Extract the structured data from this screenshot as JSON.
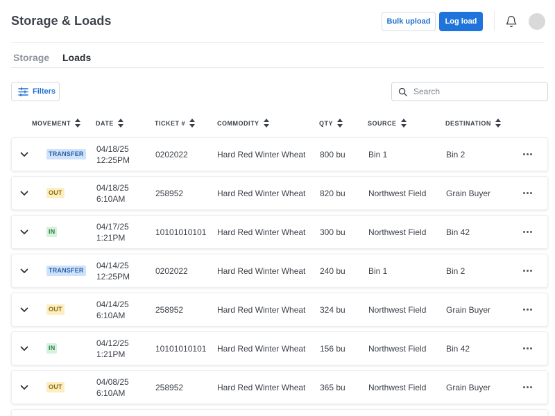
{
  "header": {
    "title": "Storage & Loads",
    "bulk_upload_label": "Bulk upload",
    "log_load_label": "Log load",
    "accent_color": "#1f74db"
  },
  "tabs": [
    {
      "label": "Storage",
      "active": false
    },
    {
      "label": "Loads",
      "active": true
    }
  ],
  "toolbar": {
    "filters_label": "Filters",
    "search_placeholder": "Search"
  },
  "table": {
    "columns": [
      "MOVEMENT",
      "DATE",
      "TICKET #",
      "COMMODITY",
      "QTY",
      "SOURCE",
      "DESTINATION"
    ],
    "rows": [
      {
        "movement": "TRANSFER",
        "date": "04/18/25",
        "time": "12:25PM",
        "ticket": "0202022",
        "commodity": "Hard Red Winter Wheat",
        "qty": "800 bu",
        "source": "Bin 1",
        "destination": "Bin 2"
      },
      {
        "movement": "OUT",
        "date": "04/18/25",
        "time": "6:10AM",
        "ticket": "258952",
        "commodity": "Hard Red Winter Wheat",
        "qty": "820 bu",
        "source": "Northwest Field",
        "destination": "Grain Buyer"
      },
      {
        "movement": "IN",
        "date": "04/17/25",
        "time": "1:21PM",
        "ticket": "10101010101",
        "commodity": "Hard Red Winter Wheat",
        "qty": "300 bu",
        "source": "Northwest Field",
        "destination": "Bin 42"
      },
      {
        "movement": "TRANSFER",
        "date": "04/14/25",
        "time": "12:25PM",
        "ticket": "0202022",
        "commodity": "Hard Red Winter Wheat",
        "qty": "240 bu",
        "source": "Bin 1",
        "destination": "Bin 2"
      },
      {
        "movement": "OUT",
        "date": "04/14/25",
        "time": "6:10AM",
        "ticket": "258952",
        "commodity": "Hard Red Winter Wheat",
        "qty": "324 bu",
        "source": "Northwest Field",
        "destination": "Grain Buyer"
      },
      {
        "movement": "IN",
        "date": "04/12/25",
        "time": "1:21PM",
        "ticket": "10101010101",
        "commodity": "Hard Red Winter Wheat",
        "qty": "156 bu",
        "source": "Northwest Field",
        "destination": "Bin 42"
      },
      {
        "movement": "OUT",
        "date": "04/08/25",
        "time": "6:10AM",
        "ticket": "258952",
        "commodity": "Hard Red Winter Wheat",
        "qty": "365 bu",
        "source": "Northwest Field",
        "destination": "Grain Buyer"
      }
    ]
  },
  "badge_colors": {
    "TRANSFER": {
      "bg": "#cfe2fb",
      "fg": "#2b5fa6"
    },
    "OUT": {
      "bg": "#fdeec0",
      "fg": "#8a6b12"
    },
    "IN": {
      "bg": "#d5f2dc",
      "fg": "#2f7b43"
    }
  },
  "icons": {
    "filters": "sliders-icon",
    "search": "search-icon",
    "notifications": "bell-icon",
    "sort": "sort-icon",
    "expand": "chevron-down-icon",
    "more": "more-horizontal-icon"
  }
}
